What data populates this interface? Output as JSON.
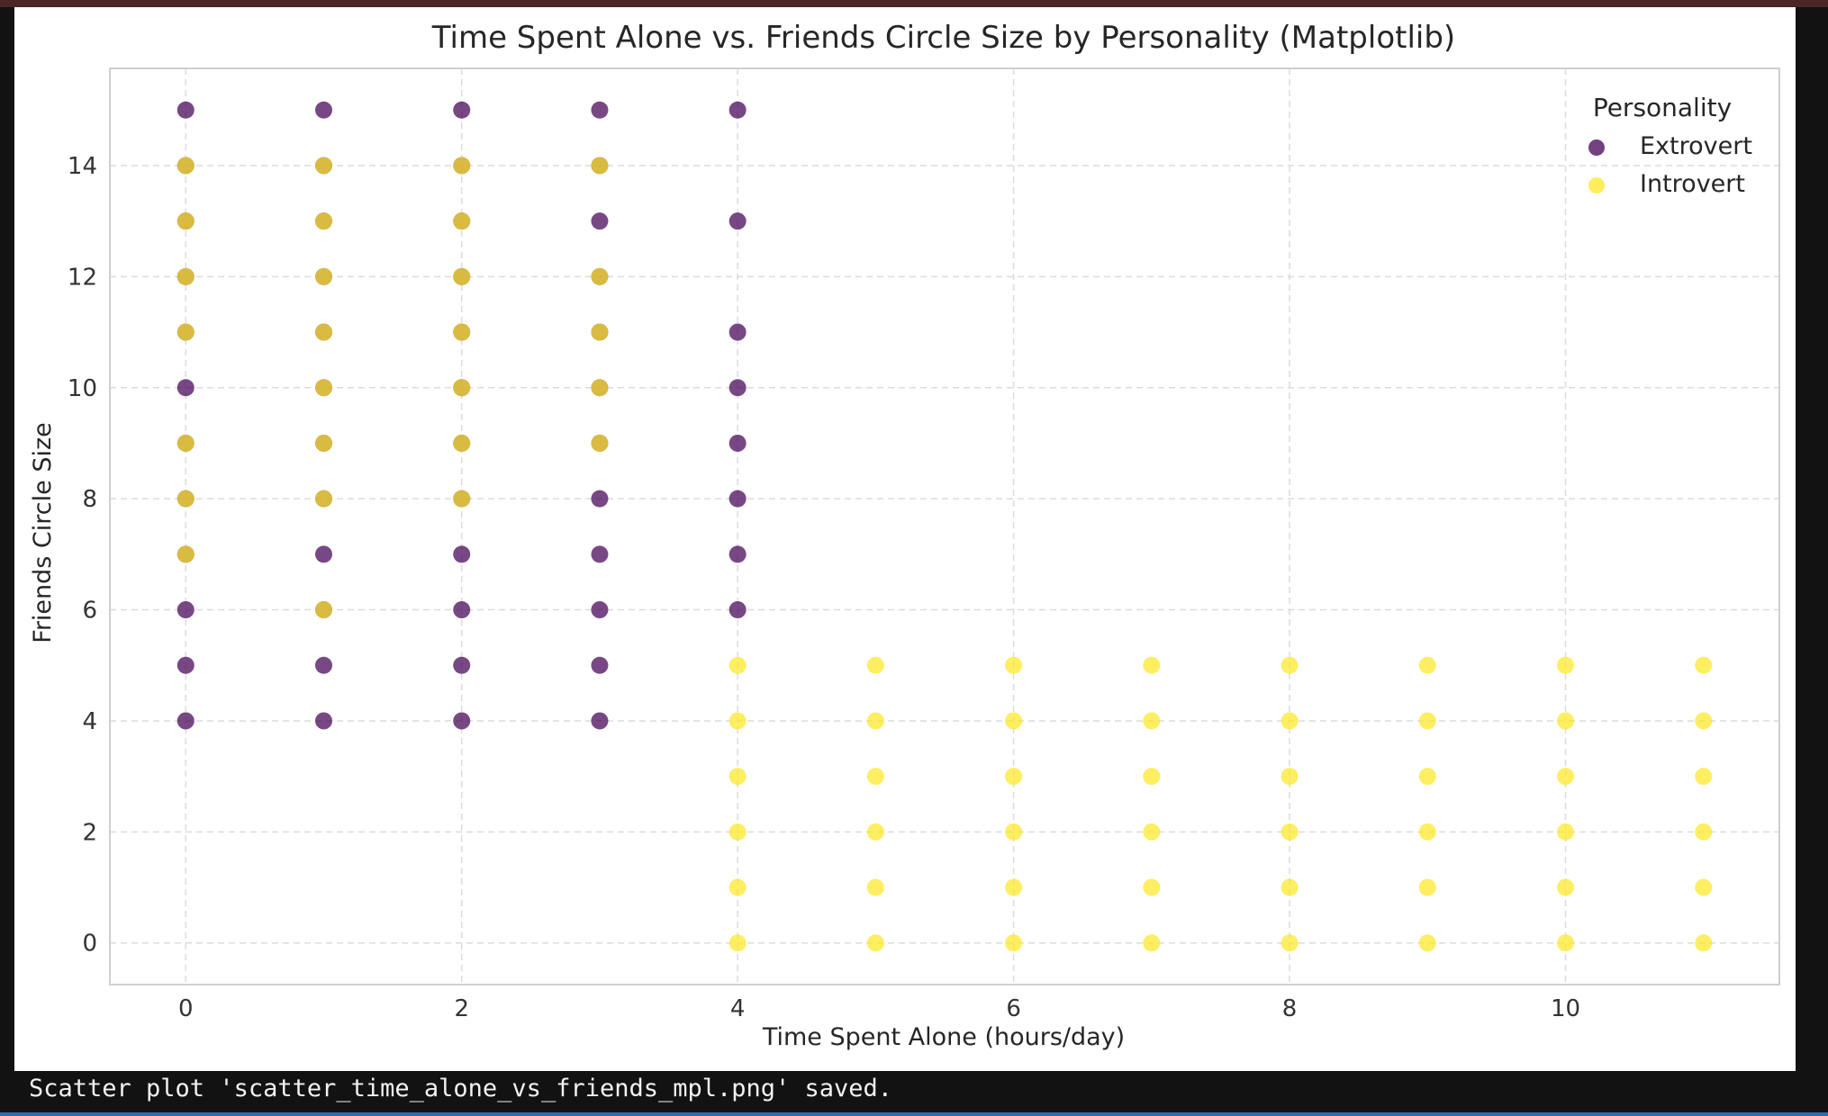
{
  "console": {
    "output": "Scatter plot 'scatter_time_alone_vs_friends_mpl.png' saved."
  },
  "chart_data": {
    "type": "scatter",
    "title": "Time Spent Alone vs. Friends Circle Size by Personality (Matplotlib)",
    "xlabel": "Time Spent Alone (hours/day)",
    "ylabel": "Friends Circle Size",
    "xlim": [
      -0.55,
      11.55
    ],
    "ylim": [
      -0.75,
      15.75
    ],
    "xticks": [
      0,
      2,
      4,
      6,
      8,
      10
    ],
    "yticks": [
      0,
      2,
      4,
      6,
      8,
      10,
      12,
      14
    ],
    "grid": true,
    "legend": {
      "title": "Personality",
      "position": "top-right"
    },
    "series": [
      {
        "name": "Extrovert",
        "color": "#440154",
        "points": [
          [
            0,
            4
          ],
          [
            0,
            5
          ],
          [
            0,
            6
          ],
          [
            0,
            7
          ],
          [
            0,
            8
          ],
          [
            0,
            9
          ],
          [
            0,
            10
          ],
          [
            0,
            11
          ],
          [
            0,
            12
          ],
          [
            0,
            13
          ],
          [
            0,
            14
          ],
          [
            0,
            15
          ],
          [
            1,
            4
          ],
          [
            1,
            5
          ],
          [
            1,
            6
          ],
          [
            1,
            7
          ],
          [
            1,
            8
          ],
          [
            1,
            9
          ],
          [
            1,
            10
          ],
          [
            1,
            11
          ],
          [
            1,
            12
          ],
          [
            1,
            13
          ],
          [
            1,
            14
          ],
          [
            1,
            15
          ],
          [
            2,
            4
          ],
          [
            2,
            5
          ],
          [
            2,
            6
          ],
          [
            2,
            7
          ],
          [
            2,
            8
          ],
          [
            2,
            9
          ],
          [
            2,
            10
          ],
          [
            2,
            11
          ],
          [
            2,
            12
          ],
          [
            2,
            13
          ],
          [
            2,
            14
          ],
          [
            2,
            15
          ],
          [
            3,
            4
          ],
          [
            3,
            5
          ],
          [
            3,
            6
          ],
          [
            3,
            7
          ],
          [
            3,
            8
          ],
          [
            3,
            9
          ],
          [
            3,
            10
          ],
          [
            3,
            11
          ],
          [
            3,
            12
          ],
          [
            3,
            13
          ],
          [
            3,
            14
          ],
          [
            3,
            15
          ],
          [
            4,
            6
          ],
          [
            4,
            7
          ],
          [
            4,
            8
          ],
          [
            4,
            9
          ],
          [
            4,
            10
          ],
          [
            4,
            11
          ],
          [
            4,
            13
          ],
          [
            4,
            15
          ]
        ]
      },
      {
        "name": "Introvert",
        "color": "#fde725",
        "points": [
          [
            0,
            7
          ],
          [
            0,
            8
          ],
          [
            0,
            9
          ],
          [
            0,
            11
          ],
          [
            0,
            12
          ],
          [
            0,
            13
          ],
          [
            0,
            14
          ],
          [
            1,
            6
          ],
          [
            1,
            8
          ],
          [
            1,
            9
          ],
          [
            1,
            10
          ],
          [
            1,
            11
          ],
          [
            1,
            12
          ],
          [
            1,
            13
          ],
          [
            1,
            14
          ],
          [
            2,
            8
          ],
          [
            2,
            9
          ],
          [
            2,
            10
          ],
          [
            2,
            11
          ],
          [
            2,
            12
          ],
          [
            2,
            13
          ],
          [
            2,
            14
          ],
          [
            3,
            9
          ],
          [
            3,
            10
          ],
          [
            3,
            11
          ],
          [
            3,
            12
          ],
          [
            3,
            14
          ],
          [
            4,
            0
          ],
          [
            4,
            1
          ],
          [
            4,
            2
          ],
          [
            4,
            3
          ],
          [
            4,
            4
          ],
          [
            4,
            5
          ],
          [
            5,
            0
          ],
          [
            5,
            1
          ],
          [
            5,
            2
          ],
          [
            5,
            3
          ],
          [
            5,
            4
          ],
          [
            5,
            5
          ],
          [
            6,
            0
          ],
          [
            6,
            1
          ],
          [
            6,
            2
          ],
          [
            6,
            3
          ],
          [
            6,
            4
          ],
          [
            6,
            5
          ],
          [
            7,
            0
          ],
          [
            7,
            1
          ],
          [
            7,
            2
          ],
          [
            7,
            3
          ],
          [
            7,
            4
          ],
          [
            7,
            5
          ],
          [
            8,
            0
          ],
          [
            8,
            1
          ],
          [
            8,
            2
          ],
          [
            8,
            3
          ],
          [
            8,
            4
          ],
          [
            8,
            5
          ],
          [
            9,
            0
          ],
          [
            9,
            1
          ],
          [
            9,
            2
          ],
          [
            9,
            3
          ],
          [
            9,
            4
          ],
          [
            9,
            5
          ],
          [
            10,
            0
          ],
          [
            10,
            1
          ],
          [
            10,
            2
          ],
          [
            10,
            3
          ],
          [
            10,
            4
          ],
          [
            10,
            5
          ],
          [
            11,
            0
          ],
          [
            11,
            1
          ],
          [
            11,
            2
          ],
          [
            11,
            3
          ],
          [
            11,
            4
          ],
          [
            11,
            5
          ]
        ]
      }
    ]
  }
}
